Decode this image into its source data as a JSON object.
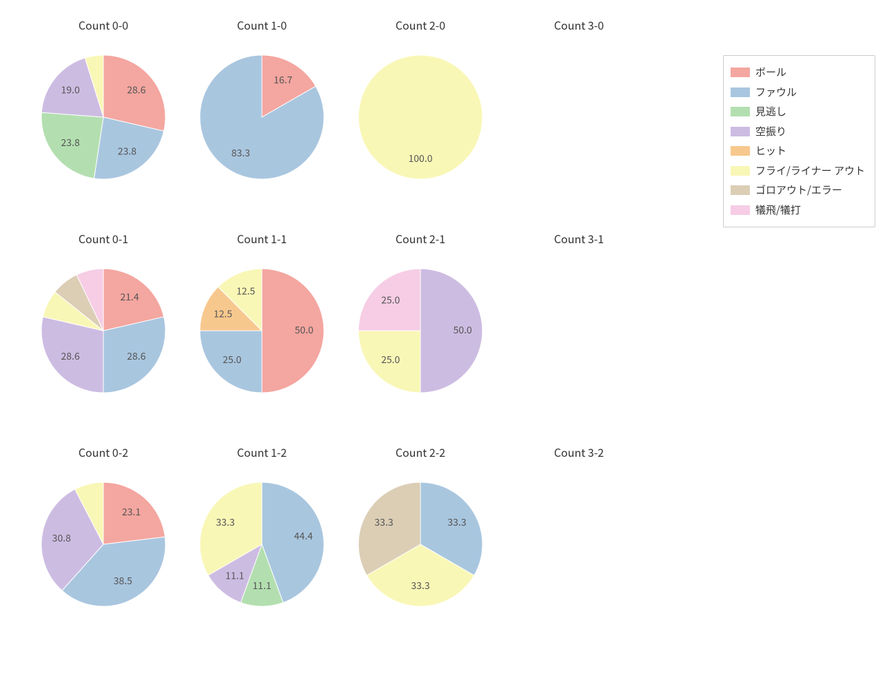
{
  "background_color": "#ffffff",
  "label_fontsize": 14,
  "title_fontsize": 16,
  "label_color": "#555555",
  "title_color": "#333333",
  "pie_radius": 90,
  "label_offset": 0.68,
  "categories": [
    {
      "key": "ball",
      "label": "ボール",
      "color": "#f4a6a0"
    },
    {
      "key": "foul",
      "label": "ファウル",
      "color": "#a9c6df"
    },
    {
      "key": "looking",
      "label": "見逃し",
      "color": "#b3dfb0"
    },
    {
      "key": "swing",
      "label": "空振り",
      "color": "#cdbce2"
    },
    {
      "key": "hit",
      "label": "ヒット",
      "color": "#f7c88e"
    },
    {
      "key": "flyout",
      "label": "フライ/ライナー アウト",
      "color": "#f9f7b6"
    },
    {
      "key": "ground",
      "label": "ゴロアウト/エラー",
      "color": "#dbceb5"
    },
    {
      "key": "sac",
      "label": "犠飛/犠打",
      "color": "#f6cde5"
    }
  ],
  "charts": [
    {
      "id": "c00",
      "title": "Count 0-0",
      "slices": [
        {
          "cat": "ball",
          "value": 28.6,
          "label": "28.6"
        },
        {
          "cat": "foul",
          "value": 23.8,
          "label": "23.8"
        },
        {
          "cat": "looking",
          "value": 23.8,
          "label": "23.8"
        },
        {
          "cat": "swing",
          "value": 19.0,
          "label": "19.0"
        },
        {
          "cat": "flyout",
          "value": 4.8,
          "label": ""
        }
      ]
    },
    {
      "id": "c10",
      "title": "Count 1-0",
      "slices": [
        {
          "cat": "ball",
          "value": 16.7,
          "label": "16.7"
        },
        {
          "cat": "foul",
          "value": 83.3,
          "label": "83.3"
        }
      ]
    },
    {
      "id": "c20",
      "title": "Count 2-0",
      "slices": [
        {
          "cat": "flyout",
          "value": 100.0,
          "label": "100.0"
        }
      ]
    },
    {
      "id": "c30",
      "title": "Count 3-0",
      "slices": []
    },
    {
      "id": "c01",
      "title": "Count 0-1",
      "slices": [
        {
          "cat": "ball",
          "value": 21.4,
          "label": "21.4"
        },
        {
          "cat": "foul",
          "value": 28.6,
          "label": "28.6"
        },
        {
          "cat": "swing",
          "value": 28.6,
          "label": "28.6"
        },
        {
          "cat": "flyout",
          "value": 7.15,
          "label": ""
        },
        {
          "cat": "ground",
          "value": 7.15,
          "label": ""
        },
        {
          "cat": "sac",
          "value": 7.1,
          "label": ""
        }
      ]
    },
    {
      "id": "c11",
      "title": "Count 1-1",
      "slices": [
        {
          "cat": "ball",
          "value": 50.0,
          "label": "50.0"
        },
        {
          "cat": "foul",
          "value": 25.0,
          "label": "25.0"
        },
        {
          "cat": "hit",
          "value": 12.5,
          "label": "12.5"
        },
        {
          "cat": "flyout",
          "value": 12.5,
          "label": "12.5"
        }
      ]
    },
    {
      "id": "c21",
      "title": "Count 2-1",
      "slices": [
        {
          "cat": "swing",
          "value": 50.0,
          "label": "50.0"
        },
        {
          "cat": "flyout",
          "value": 25.0,
          "label": "25.0"
        },
        {
          "cat": "sac",
          "value": 25.0,
          "label": "25.0"
        }
      ]
    },
    {
      "id": "c31",
      "title": "Count 3-1",
      "slices": []
    },
    {
      "id": "c02",
      "title": "Count 0-2",
      "slices": [
        {
          "cat": "ball",
          "value": 23.1,
          "label": "23.1"
        },
        {
          "cat": "foul",
          "value": 38.5,
          "label": "38.5"
        },
        {
          "cat": "swing",
          "value": 30.8,
          "label": "30.8"
        },
        {
          "cat": "flyout",
          "value": 7.6,
          "label": ""
        }
      ]
    },
    {
      "id": "c12",
      "title": "Count 1-2",
      "slices": [
        {
          "cat": "foul",
          "value": 44.4,
          "label": "44.4"
        },
        {
          "cat": "looking",
          "value": 11.1,
          "label": "11.1"
        },
        {
          "cat": "swing",
          "value": 11.1,
          "label": "11.1"
        },
        {
          "cat": "flyout",
          "value": 33.3,
          "label": "33.3"
        }
      ]
    },
    {
      "id": "c22",
      "title": "Count 2-2",
      "slices": [
        {
          "cat": "foul",
          "value": 33.3,
          "label": "33.3"
        },
        {
          "cat": "flyout",
          "value": 33.3,
          "label": "33.3"
        },
        {
          "cat": "ground",
          "value": 33.3,
          "label": "33.3"
        }
      ]
    },
    {
      "id": "c32",
      "title": "Count 3-2",
      "slices": []
    }
  ],
  "legend": {
    "border_color": "#cccccc",
    "swatch_w": 28,
    "swatch_h": 14
  }
}
